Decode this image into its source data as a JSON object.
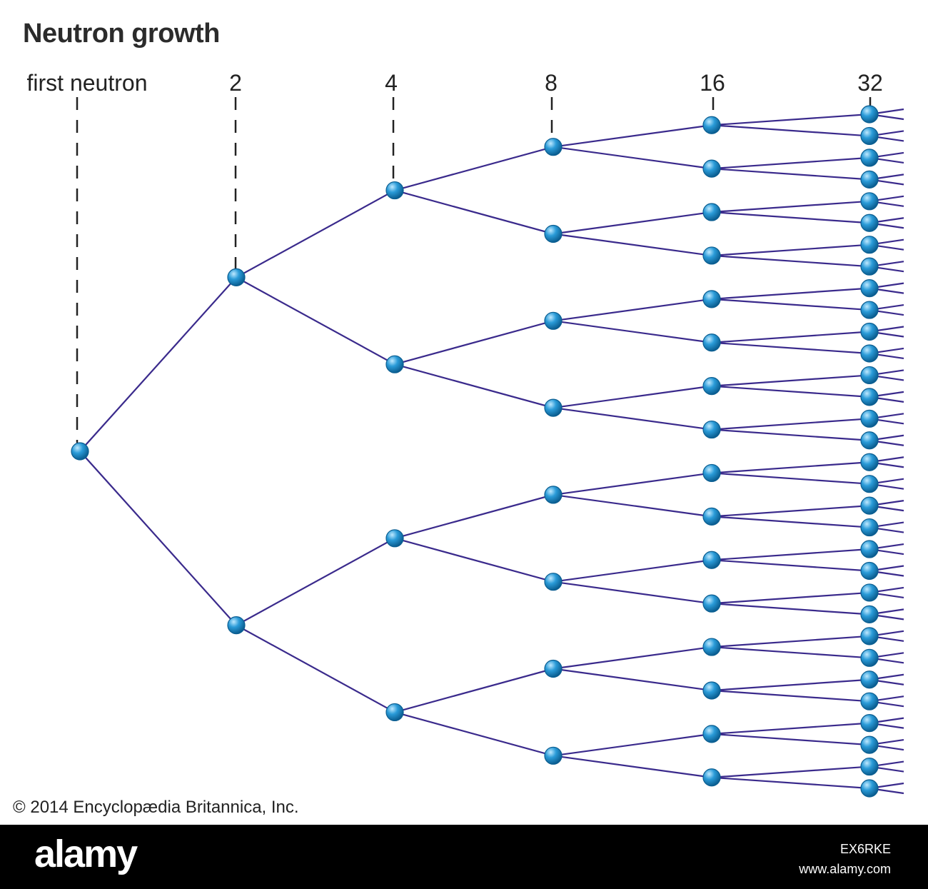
{
  "title": "Neutron growth",
  "generations": [
    {
      "label": "first neutron",
      "count": 1
    },
    {
      "label": "2",
      "count": 2
    },
    {
      "label": "4",
      "count": 4
    },
    {
      "label": "8",
      "count": 8
    },
    {
      "label": "16",
      "count": 16
    },
    {
      "label": "32",
      "count": 32
    }
  ],
  "colors": {
    "branch": "#3a2a8c",
    "node_fill": "#2a9bd8",
    "node_highlight": "#bfe9ff",
    "node_edge": "#0b5e91",
    "dash": "#222222"
  },
  "copyright": "© 2014 Encyclopædia Britannica, Inc.",
  "watermark": {
    "brand": "alamy",
    "image_id": "EX6RKE",
    "site": "www.alamy.com"
  }
}
